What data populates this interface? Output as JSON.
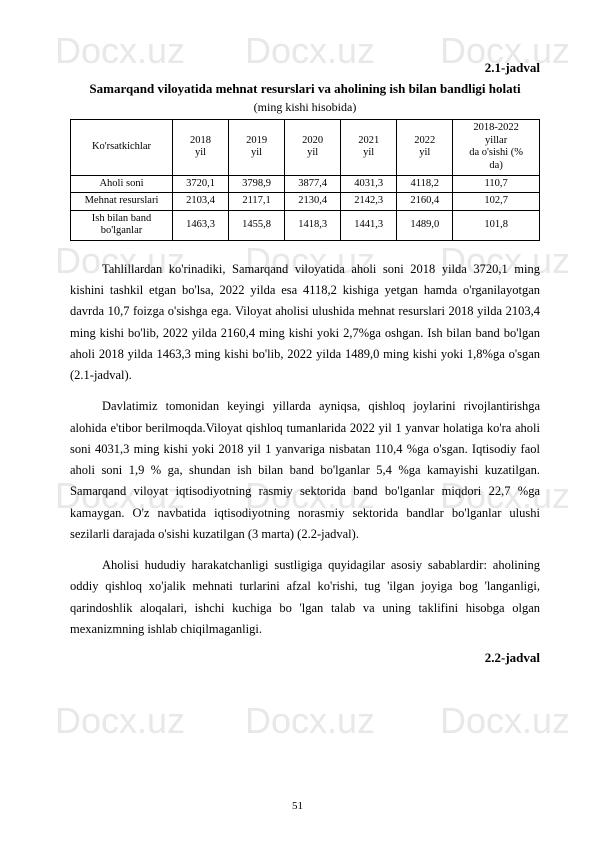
{
  "watermark": "Docx.uz",
  "table_label_1": "2.1-jadval",
  "table_title": "Samarqand viloyatida mehnat resurslari va aholining ish bilan bandligi holati",
  "table_subtitle": "(ming kishi hisobida)",
  "table": {
    "headers": {
      "col0": "Ko'rsatkichlar",
      "col1": "2018\nyil",
      "col2": "2019\nyil",
      "col3": "2020\nyil",
      "col4": "2021\nyil",
      "col5": "2022\nyil",
      "col6": "2018-2022\nyillar\nda o'sishi (%\nda)"
    },
    "rows": [
      {
        "label": "Aholi soni",
        "v1": "3720,1",
        "v2": "3798,9",
        "v3": "3877,4",
        "v4": "4031,3",
        "v5": "4118,2",
        "v6": "110,7"
      },
      {
        "label": "Mehnat resurslari",
        "v1": "2103,4",
        "v2": "2117,1",
        "v3": "2130,4",
        "v4": "2142,3",
        "v5": "2160,4",
        "v6": "102,7"
      },
      {
        "label": "Ish bilan band\nbo'lganlar",
        "v1": "1463,3",
        "v2": "1455,8",
        "v3": "1418,3",
        "v4": "1441,3",
        "v5": "1489,0",
        "v6": "101,8"
      }
    ]
  },
  "paragraph1": "Tahlillardan ko'rinadiki, Samarqand viloyatida aholi soni 2018 yilda 3720,1 ming kishini tashkil etgan bo'lsa, 2022 yilda esa 4118,2 kishiga yetgan hamda o'rganilayotgan davrda 10,7 foizga o'sishga ega. Viloyat aholisi ulushida mehnat resurslari 2018 yilda 2103,4 ming kishi bo'lib, 2022 yilda 2160,4 ming kishi yoki 2,7%ga oshgan. Ish bilan band bo'lgan aholi 2018 yilda 1463,3 ming kishi bo'lib, 2022 yilda 1489,0 ming kishi yoki 1,8%ga o'sgan (2.1-jadval).",
  "paragraph2": "Davlatimiz tomonidan keyingi yillarda ayniqsa, qishloq joylarini rivojlantirishga alohida e'tibor berilmoqda.Viloyat qishloq tumanlarida 2022 yil 1 yanvar holatiga ko'ra aholi soni 4031,3 ming kishi yoki 2018 yil 1 yanvariga nisbatan 110,4 %ga o'sgan. Iqtisodiy faol aholi soni 1,9 % ga, shundan ish bilan band bo'lganlar 5,4 %ga kamayishi kuzatilgan. Samarqand viloyat iqtisodiyotning rasmiy sektorida band bo'lganlar miqdori 22,7 %ga kamaygan. O'z navbatida iqtisodiyotning norasmiy sektorida bandlar bo'lganlar ulushi sezilarli darajada o'sishi kuzatilgan (3 marta) (2.2-jadval).",
  "paragraph3": "Aholisi hududiy harakatchanligi sustligiga quyidagilar asosiy sabablardir: aholining oddiy qishloq xo'jalik mehnati turlarini afzal ko'rishi, tug 'ilgan joyiga bog 'langanligi, qarindoshlik aloqalari, ishchi kuchiga bo 'lgan talab va uning taklifini hisobga olgan mexanizmning ishlab chiqilmaganligi.",
  "table_label_2": "2.2-jadval",
  "page_number": "51"
}
